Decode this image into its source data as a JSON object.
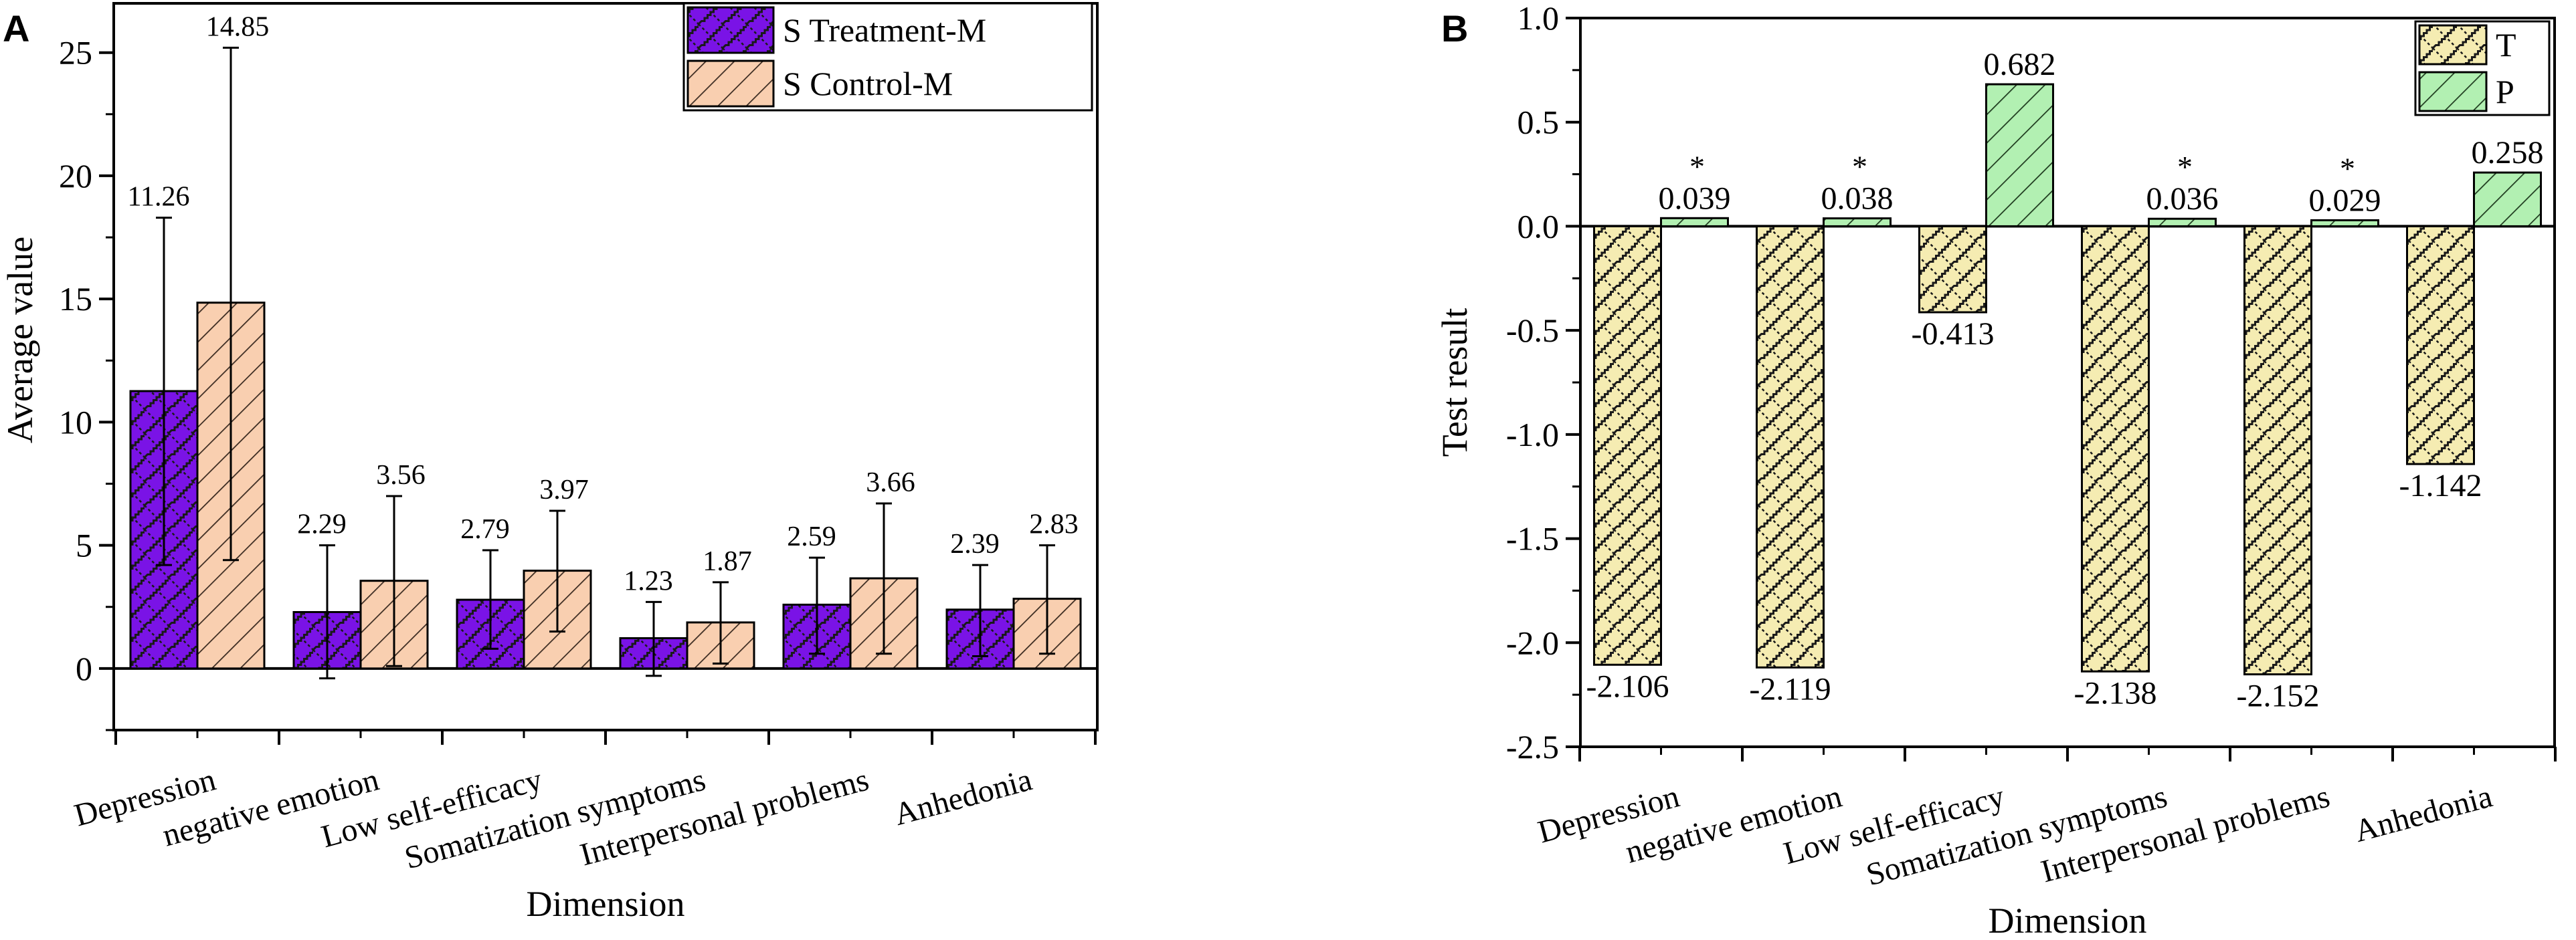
{
  "chart_data": [
    {
      "type": "bar",
      "panel_label": "A",
      "categories": [
        "Depression",
        "negative emotion",
        "Low self-efficacy",
        "Somatization symptoms",
        "Interpersonal problems",
        "Anhedonia"
      ],
      "series": [
        {
          "name": "S  Treatment-M",
          "color": "#7a13e6",
          "pattern": "zigzag",
          "values": [
            11.26,
            2.29,
            2.79,
            1.23,
            2.59,
            2.39
          ],
          "labels": [
            "11.26",
            "2.29",
            "2.79",
            "1.23",
            "2.59",
            "2.39"
          ],
          "error_low": [
            4.2,
            -0.4,
            0.8,
            -0.3,
            0.6,
            0.5
          ],
          "error_high": [
            18.3,
            5.0,
            4.8,
            2.7,
            4.5,
            4.2
          ]
        },
        {
          "name": "S  Control-M",
          "color": "#f9cfb0",
          "pattern": "diagonal",
          "values": [
            14.85,
            3.56,
            3.97,
            1.87,
            3.66,
            2.83
          ],
          "labels": [
            "14.85",
            "3.56",
            "3.97",
            "1.87",
            "3.66",
            "2.83"
          ],
          "error_low": [
            4.4,
            0.1,
            1.5,
            0.2,
            0.6,
            0.6
          ],
          "error_high": [
            25.2,
            7.0,
            6.4,
            3.5,
            6.7,
            5.0
          ]
        }
      ],
      "xlabel": "Dimension",
      "ylabel": "Average value",
      "ylim": [
        -2.5,
        27
      ],
      "yticks": [
        0,
        5,
        10,
        15,
        20,
        25
      ],
      "ytick_labels": [
        "0",
        "5",
        "10",
        "15",
        "20",
        "25"
      ],
      "legend_position": "top-right",
      "grid": false
    },
    {
      "type": "bar",
      "panel_label": "B",
      "categories": [
        "Depression",
        "negative emotion",
        "Low self-efficacy",
        "Somatization symptoms",
        "Interpersonal problems",
        "Anhedonia"
      ],
      "series": [
        {
          "name": "T",
          "color": "#f5ecb2",
          "pattern": "zigzag",
          "values": [
            -2.106,
            -2.119,
            -0.413,
            -2.138,
            -2.152,
            -1.142
          ],
          "labels": [
            "-2.106",
            "-2.119",
            "-0.413",
            "-2.138",
            "-2.152",
            "-1.142"
          ]
        },
        {
          "name": "P",
          "color": "#b2f0b2",
          "pattern": "diagonal",
          "values": [
            0.039,
            0.038,
            0.682,
            0.036,
            0.029,
            0.258
          ],
          "labels": [
            "0.039",
            "0.038",
            "0.682",
            "0.036",
            "0.029",
            "0.258"
          ],
          "significance": [
            "*",
            "*",
            "",
            "*",
            "*",
            ""
          ]
        }
      ],
      "xlabel": "Dimension",
      "ylabel": "Test result",
      "ylim": [
        -2.5,
        1.0
      ],
      "yticks": [
        -2.5,
        -2.0,
        -1.5,
        -1.0,
        -0.5,
        0.0,
        0.5,
        1.0
      ],
      "ytick_labels": [
        "-2.5",
        "-2.0",
        "-1.5",
        "-1.0",
        "-0.5",
        "0.0",
        "0.5",
        "1.0"
      ],
      "legend_position": "top-right",
      "grid": false
    }
  ]
}
